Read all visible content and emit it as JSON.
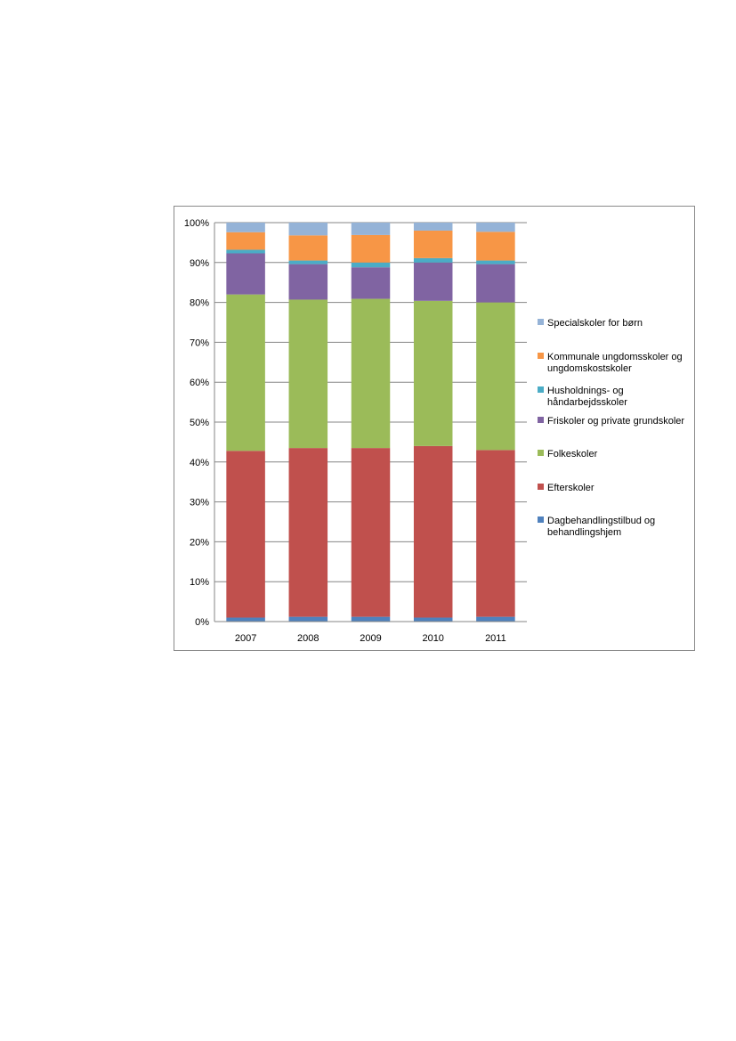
{
  "chart_data": {
    "type": "bar",
    "stacked": true,
    "percent": true,
    "categories": [
      "2007",
      "2008",
      "2009",
      "2010",
      "2011"
    ],
    "y_ticks": [
      "0%",
      "10%",
      "20%",
      "30%",
      "40%",
      "50%",
      "60%",
      "70%",
      "80%",
      "90%",
      "100%"
    ],
    "ylim": [
      0,
      100
    ],
    "grid": true,
    "legend_position": "right",
    "series": [
      {
        "name": "Dagbehandlingstilbud og behandlingshjem",
        "name_lines": [
          "Dagbehandlingstilbud og",
          "behandlingshjem"
        ],
        "color": "#4f81bd",
        "values": [
          1.0,
          1.2,
          1.2,
          1.0,
          1.2
        ]
      },
      {
        "name": "Efterskoler",
        "name_lines": [
          "Efterskoler"
        ],
        "color": "#c0504d",
        "values": [
          41.8,
          42.3,
          42.3,
          43.0,
          41.8
        ]
      },
      {
        "name": "Folkeskoler",
        "name_lines": [
          "Folkeskoler"
        ],
        "color": "#9bbb59",
        "values": [
          39.2,
          37.2,
          37.4,
          36.4,
          37.0
        ]
      },
      {
        "name": "Friskoler og private grundskoler",
        "name_lines": [
          "Friskoler og private grundskoler"
        ],
        "color": "#8064a2",
        "values": [
          10.3,
          8.9,
          7.9,
          9.6,
          9.6
        ]
      },
      {
        "name": "Husholdnings- og håndarbejdsskoler",
        "name_lines": [
          "Husholdnings- og",
          "håndarbejdsskoler"
        ],
        "color": "#4bacc6",
        "values": [
          0.9,
          0.9,
          1.2,
          1.1,
          0.9
        ]
      },
      {
        "name": "Kommunale ungdomsskoler og ungdomskostskoler",
        "name_lines": [
          "Kommunale ungdomsskoler og",
          "ungdomskostskoler"
        ],
        "color": "#f79646",
        "values": [
          4.4,
          6.3,
          6.9,
          6.9,
          7.2
        ]
      },
      {
        "name": "Specialskoler for børn",
        "name_lines": [
          "Specialskoler for børn"
        ],
        "color": "#95b3d7",
        "values": [
          2.4,
          3.2,
          3.1,
          2.0,
          2.3
        ]
      }
    ]
  }
}
